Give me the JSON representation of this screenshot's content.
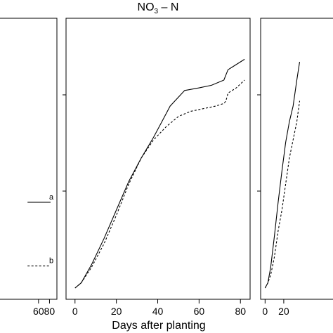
{
  "xlabel": "Days after planting",
  "chart_data": [
    {
      "type": "line",
      "title": "",
      "xlabel": "",
      "xlim": [
        0,
        82
      ],
      "ylim": [
        0,
        1
      ],
      "grid": false,
      "x_ticks": [
        60,
        80
      ],
      "series": [
        {
          "line_style": "solid",
          "x": [
            40,
            82
          ],
          "y": [
            0.33,
            0.33
          ],
          "end_label": "a"
        },
        {
          "line_style": "dashed",
          "x": [
            40,
            82
          ],
          "y": [
            0.085,
            0.085
          ],
          "end_label": "b"
        }
      ]
    },
    {
      "type": "line",
      "title_base": "NO",
      "title_sub": "3",
      "title_rest": " – N",
      "xlabel": "Days after planting",
      "xlim": [
        -4,
        84
      ],
      "ylim": [
        0,
        1
      ],
      "grid": false,
      "x_ticks": [
        0,
        20,
        40,
        60,
        80
      ],
      "series": [
        {
          "line_style": "solid",
          "x": [
            0,
            3,
            8,
            14,
            20,
            26,
            32,
            38,
            42,
            46,
            53,
            60,
            66,
            72,
            73,
            74,
            76,
            80,
            82
          ],
          "y": [
            0.0,
            0.02,
            0.09,
            0.19,
            0.3,
            0.41,
            0.5,
            0.58,
            0.64,
            0.7,
            0.76,
            0.77,
            0.78,
            0.8,
            0.82,
            0.84,
            0.85,
            0.87,
            0.88
          ]
        },
        {
          "line_style": "dashed",
          "x": [
            0,
            3,
            8,
            14,
            20,
            26,
            32,
            38,
            44,
            50,
            56,
            62,
            68,
            72,
            73,
            74,
            78,
            82
          ],
          "y": [
            0.0,
            0.02,
            0.08,
            0.17,
            0.28,
            0.4,
            0.5,
            0.57,
            0.62,
            0.66,
            0.68,
            0.69,
            0.7,
            0.71,
            0.72,
            0.75,
            0.77,
            0.8
          ]
        }
      ]
    },
    {
      "type": "line",
      "title": "",
      "xlabel": "",
      "xlim": [
        -4,
        84
      ],
      "ylim": [
        0,
        1
      ],
      "grid": false,
      "x_ticks": [
        0,
        20
      ],
      "series": [
        {
          "line_style": "solid",
          "x": [
            0,
            3,
            6,
            10,
            14,
            18,
            22,
            26,
            30,
            34,
            37
          ],
          "y": [
            0.0,
            0.02,
            0.08,
            0.2,
            0.33,
            0.45,
            0.56,
            0.64,
            0.7,
            0.8,
            0.87
          ]
        },
        {
          "line_style": "dashed",
          "x": [
            0,
            3,
            6,
            10,
            14,
            18,
            22,
            26,
            30,
            34,
            37
          ],
          "y": [
            0.0,
            0.02,
            0.05,
            0.12,
            0.22,
            0.3,
            0.4,
            0.5,
            0.57,
            0.64,
            0.72
          ]
        }
      ]
    }
  ]
}
